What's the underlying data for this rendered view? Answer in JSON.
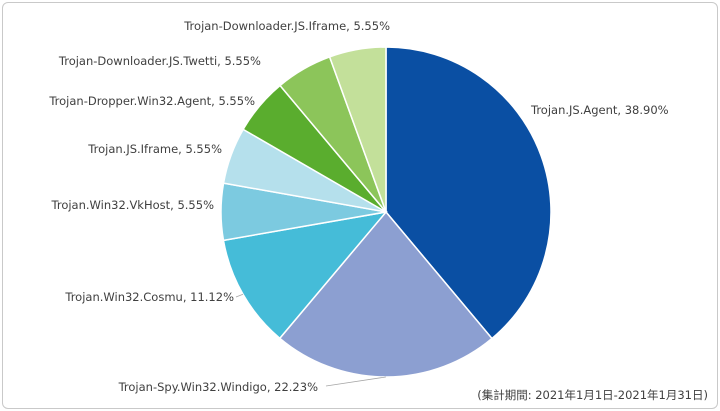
{
  "chart_data": {
    "type": "pie",
    "slices": [
      {
        "label": "Trojan.JS.Agent",
        "value": 38.9,
        "display": "38.90%",
        "color": "#0a4fa3"
      },
      {
        "label": "Trojan-Spy.Win32.Windigo",
        "value": 22.23,
        "display": "22.23%",
        "color": "#8c9fd1"
      },
      {
        "label": "Trojan.Win32.Cosmu",
        "value": 11.12,
        "display": "11.12%",
        "color": "#45bcd8"
      },
      {
        "label": "Trojan.Win32.VkHost",
        "value": 5.55,
        "display": "5.55%",
        "color": "#7ccae0"
      },
      {
        "label": "Trojan.JS.Iframe",
        "value": 5.55,
        "display": "5.55%",
        "color": "#b5e0ec"
      },
      {
        "label": "Trojan-Dropper.Win32.Agent",
        "value": 5.55,
        "display": "5.55%",
        "color": "#5aad2e"
      },
      {
        "label": "Trojan-Downloader.JS.Twetti",
        "value": 5.55,
        "display": "5.55%",
        "color": "#8cc55a"
      },
      {
        "label": "Trojan-Downloader.JS.Iframe",
        "value": 5.55,
        "display": "5.55%",
        "color": "#c3e09a"
      }
    ],
    "start_angle_deg": 0,
    "direction": "clockwise",
    "legend": "none"
  },
  "footnote": "(集計期間: 2021年1月1日-2021年1月31日)"
}
